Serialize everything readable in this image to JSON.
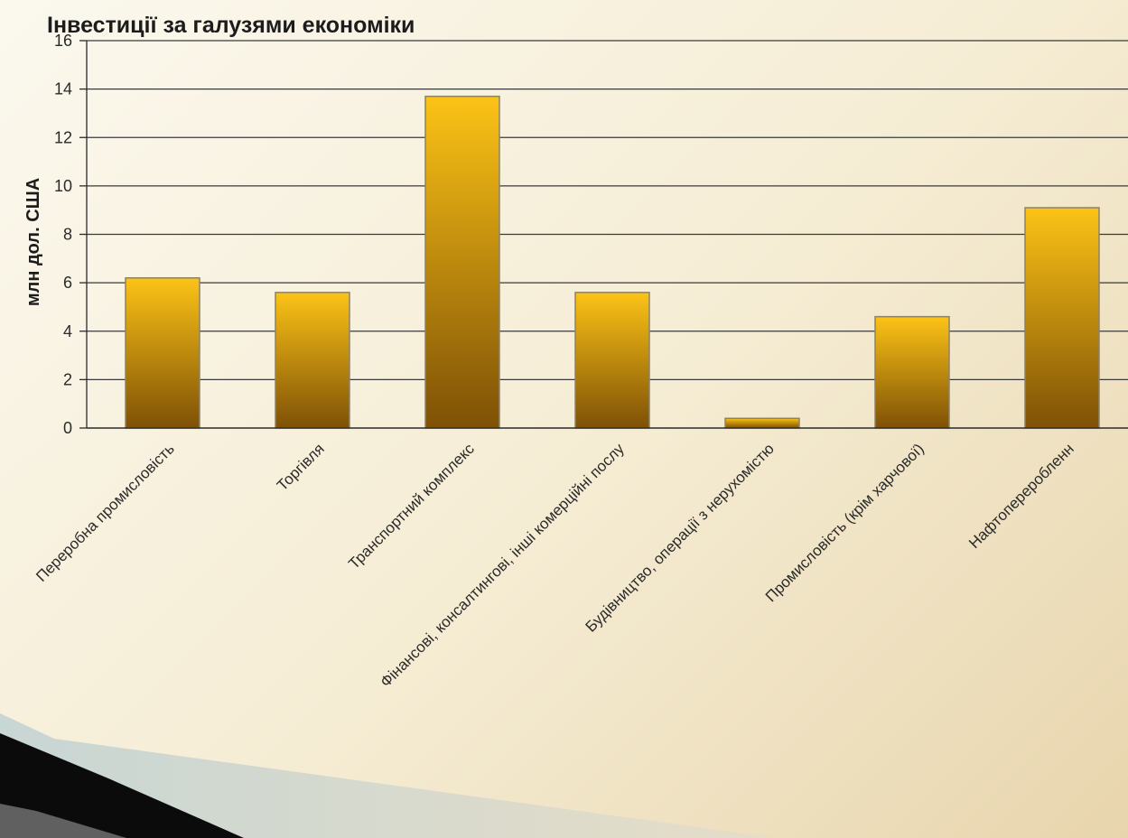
{
  "chart_data": {
    "type": "bar",
    "title": "Інвестиції за галузями економіки",
    "xlabel": "",
    "ylabel": "млн дол. США",
    "ylim": [
      0,
      16
    ],
    "yticks": [
      0,
      2,
      4,
      6,
      8,
      10,
      12,
      14,
      16
    ],
    "grid": true,
    "categories": [
      "Переробна промисловість",
      "Торгівля",
      "Транспортний комплекс",
      "Фінансові, консалтингові, інші комерційні послу",
      "Будівництво, операції з нерухомістю",
      "Промисловість (крім харчової)",
      "Нафтопереробленн"
    ],
    "values": [
      6.2,
      5.6,
      13.7,
      5.6,
      0.4,
      4.6,
      9.1
    ],
    "colors": {
      "bar_top": "#fcc316",
      "bar_bottom": "#7e5106",
      "bar_stroke": "#8c8266",
      "grid": "#3a3a3a",
      "axis": "#2a2a2a"
    }
  }
}
